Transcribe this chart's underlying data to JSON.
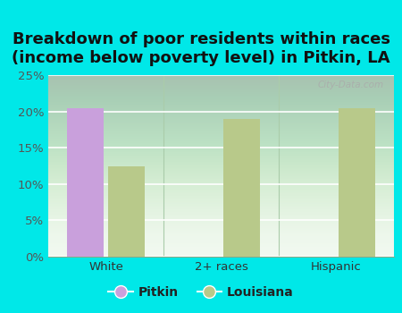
{
  "title": "Breakdown of poor residents within races\n(income below poverty level) in Pitkin, LA",
  "categories": [
    "White",
    "2+ races",
    "Hispanic"
  ],
  "pitkin_values": [
    20.5,
    null,
    null
  ],
  "louisiana_values": [
    12.5,
    19.0,
    20.5
  ],
  "pitkin_color": "#c9a0dc",
  "louisiana_color": "#b8c98a",
  "background_color": "#00e8e8",
  "plot_bg_top": "#f0f8f0",
  "plot_bg_bottom": "#d8eed8",
  "ylim": [
    0,
    25
  ],
  "yticks": [
    0,
    5,
    10,
    15,
    20,
    25
  ],
  "ytick_labels": [
    "0%",
    "5%",
    "10%",
    "15%",
    "20%",
    "25%"
  ],
  "bar_width": 0.32,
  "title_fontsize": 13,
  "watermark": "City-Data.com"
}
